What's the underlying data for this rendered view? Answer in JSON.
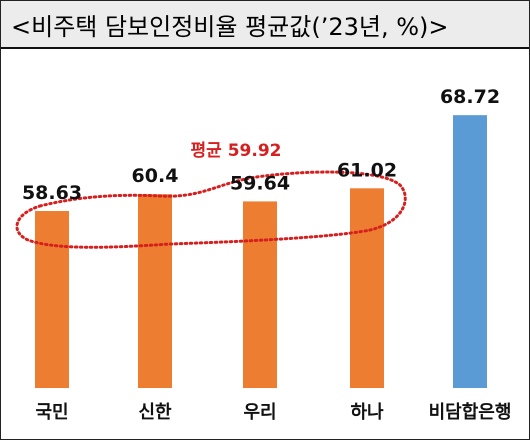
{
  "title": "<비주택 담보인정비율 평균값(’23년, %)>",
  "chart_data": {
    "type": "bar",
    "title": "<비주택 담보인정비율 평균값(’23년, %)>",
    "categories": [
      "국민",
      "신한",
      "우리",
      "하나",
      "비담합은행"
    ],
    "values": [
      58.63,
      60.4,
      59.64,
      61.02,
      68.72
    ],
    "value_labels": [
      "58.63",
      "60.4",
      "59.64",
      "61.02",
      "68.72"
    ],
    "colors": [
      "#ed7d31",
      "#ed7d31",
      "#ed7d31",
      "#ed7d31",
      "#5b9bd5"
    ],
    "annotation": {
      "text": "평균 59.92",
      "value": 59.92,
      "color": "#d62020",
      "style": "dotted-outline"
    },
    "grid": false,
    "legend": "none"
  }
}
